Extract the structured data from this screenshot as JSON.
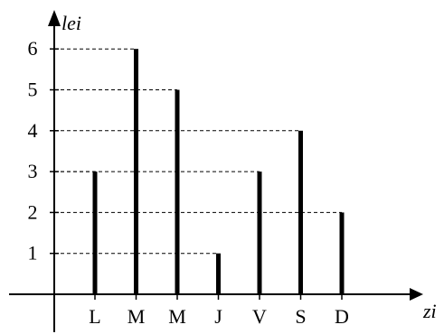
{
  "chart_data": {
    "type": "bar",
    "title": "",
    "xlabel": "zi",
    "ylabel": "lei",
    "categories": [
      "L",
      "M",
      "M",
      "J",
      "V",
      "S",
      "D"
    ],
    "values": [
      3,
      6,
      5,
      1,
      3,
      4,
      2
    ],
    "yticks": [
      "1",
      "2",
      "3",
      "4",
      "5",
      "6"
    ],
    "ylim": [
      0,
      6
    ],
    "grid": "dashed guide lines from y-axis to each bar top",
    "legend": "none",
    "colors": {
      "bar": "#000000",
      "axis": "#000000",
      "guide": "#000000"
    }
  }
}
